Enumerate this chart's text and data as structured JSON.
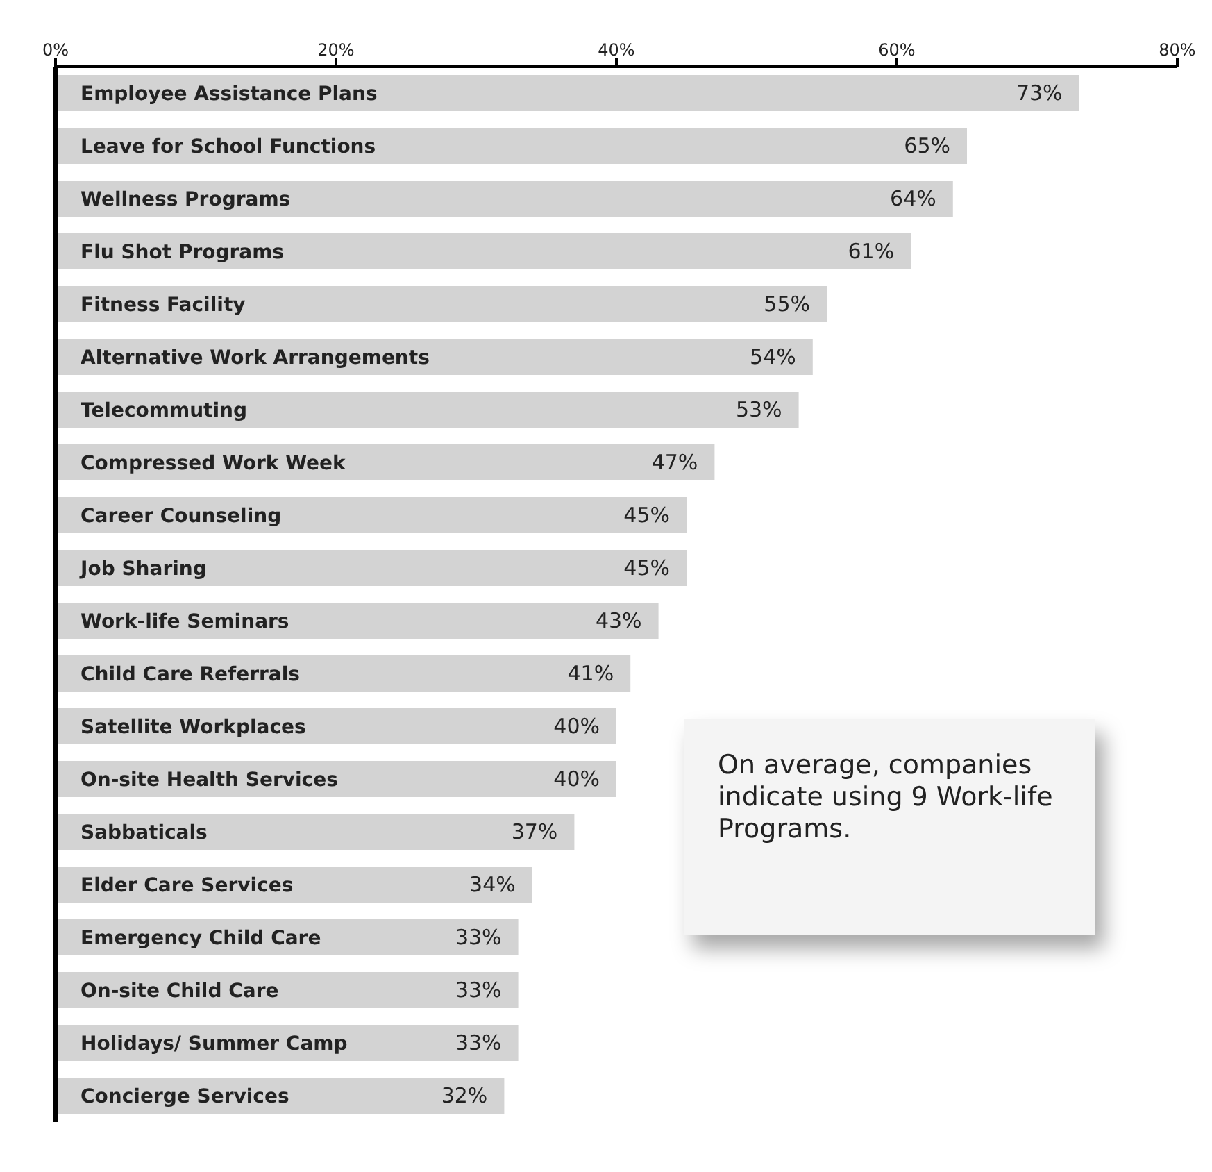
{
  "chart_data": {
    "type": "bar",
    "orientation": "horizontal",
    "categories": [
      "Employee Assistance Plans",
      "Leave for School Functions",
      "Wellness Programs",
      "Flu Shot Programs",
      "Fitness Facility",
      "Alternative Work Arrangements",
      "Telecommuting",
      "Compressed Work Week",
      "Career Counseling",
      "Job Sharing",
      "Work-life Seminars",
      "Child Care Referrals",
      "Satellite Workplaces",
      "On-site Health Services",
      "Sabbaticals",
      "Elder Care Services",
      "Emergency Child Care",
      "On-site Child Care",
      "Holidays/ Summer Camp",
      "Concierge Services"
    ],
    "values": [
      73,
      65,
      64,
      61,
      55,
      54,
      53,
      47,
      45,
      45,
      43,
      41,
      40,
      40,
      37,
      34,
      33,
      33,
      33,
      32
    ],
    "value_labels": [
      "73%",
      "65%",
      "64%",
      "61%",
      "55%",
      "54%",
      "53%",
      "47%",
      "45%",
      "45%",
      "43%",
      "41%",
      "40%",
      "40%",
      "37%",
      "34%",
      "33%",
      "33%",
      "33%",
      "32%"
    ],
    "color": "#d3d3d3",
    "xlim": [
      0,
      80
    ],
    "xticks": [
      {
        "value": 0,
        "label": "0%"
      },
      {
        "value": 20,
        "label": "20%"
      },
      {
        "value": 40,
        "label": "40%"
      },
      {
        "value": 60,
        "label": "60%"
      },
      {
        "value": 80,
        "label": "80%"
      }
    ],
    "annotations": [
      "On average, companies indicate using 9 Work-life Programs."
    ]
  }
}
